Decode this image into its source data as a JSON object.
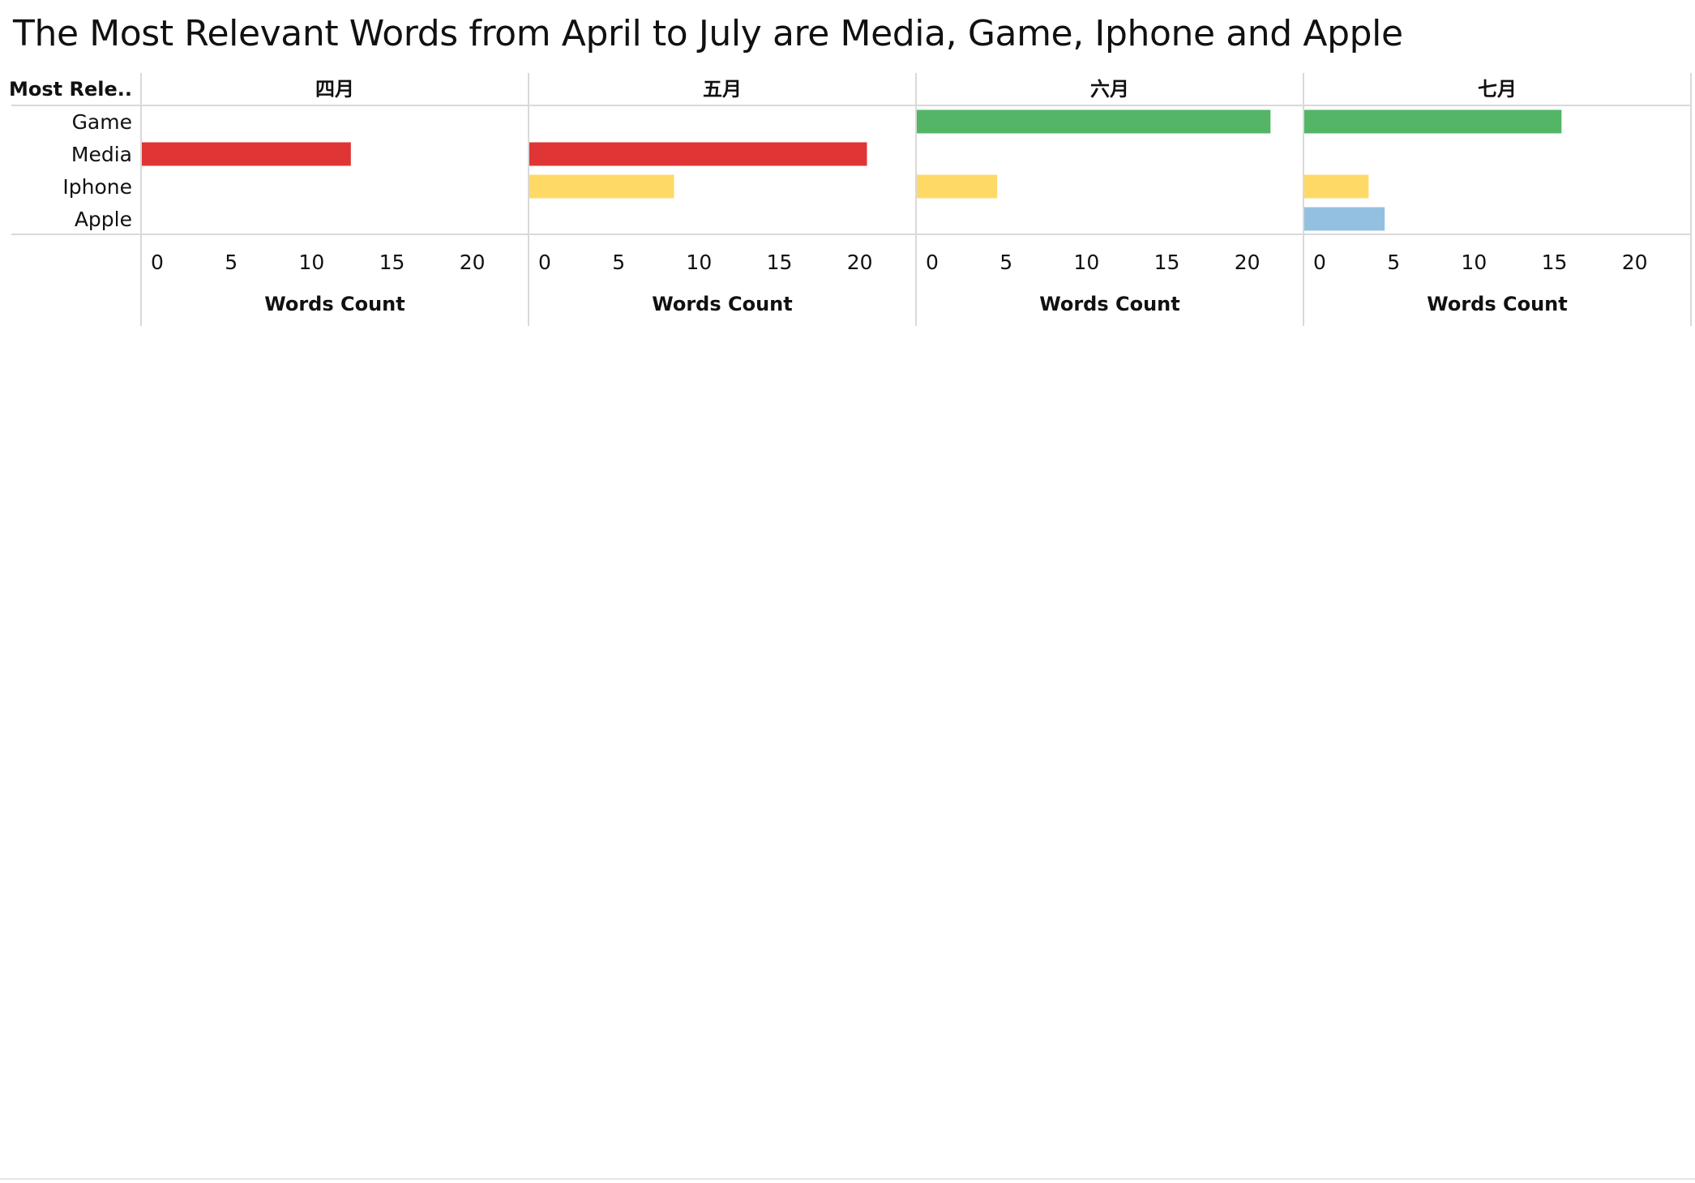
{
  "chart_data": {
    "type": "bar",
    "title": "The Most Relevant Words from April to July are Media, Game, Iphone and Apple",
    "row_header": "Most Rele..",
    "categories": [
      "Game",
      "Media",
      "Iphone",
      "Apple"
    ],
    "panels": [
      {
        "label": "四月",
        "values": [
          null,
          13,
          null,
          null
        ]
      },
      {
        "label": "五月",
        "values": [
          null,
          21,
          9,
          null
        ]
      },
      {
        "label": "六月",
        "values": [
          22,
          null,
          5,
          null
        ]
      },
      {
        "label": "七月",
        "values": [
          16,
          null,
          4,
          5
        ]
      }
    ],
    "category_colors": {
      "Game": "#53b565",
      "Media": "#e03535",
      "Iphone": "#ffd966",
      "Apple": "#93c0e0"
    },
    "xlabel": "Words Count",
    "xlim": [
      0,
      24
    ],
    "xticks": [
      0,
      5,
      10,
      15,
      20
    ],
    "grid": false,
    "legend": "none"
  }
}
